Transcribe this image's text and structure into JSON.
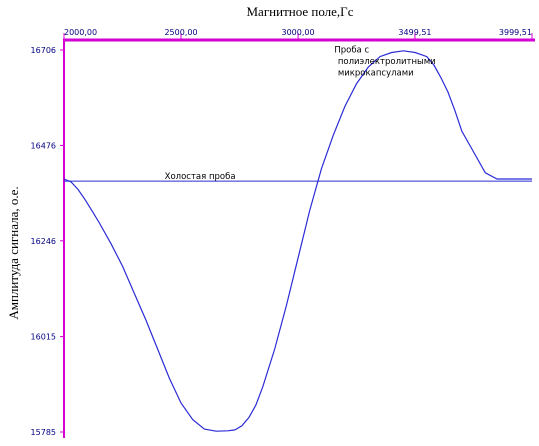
{
  "chart_data": {
    "type": "line",
    "xlabel": "Магнитное поле,Гс",
    "ylabel": "Амплитуда сигнала, о.е.",
    "x_ticks": [
      "2000,00",
      "2500,00",
      "3000,00",
      "3499,51",
      "3999,51"
    ],
    "x_tick_values": [
      2000,
      2500,
      3000,
      3499.51,
      3999.51
    ],
    "y_ticks": [
      "16706",
      "16476",
      "16246",
      "16015",
      "15785"
    ],
    "y_tick_values": [
      16706,
      16476,
      16246,
      16015,
      15785
    ],
    "xlim": [
      2000,
      3999.51
    ],
    "ylim": [
      15785,
      16706
    ],
    "grid": false,
    "colors": {
      "axis": "#d400d4",
      "tick_label": "#000080",
      "series": "#2b2bd6",
      "text": "#000000"
    },
    "annotations": [
      {
        "text": "Проба с",
        "x": 3155,
        "y": 16700
      },
      {
        "text": "полиэлектролитными",
        "x": 3170,
        "y": 16672
      },
      {
        "text": "микрокапсулами",
        "x": 3170,
        "y": 16645
      },
      {
        "text": "Холостая проба",
        "x": 2430,
        "y": 16395
      }
    ],
    "series": [
      {
        "x": [
          2000,
          2030,
          2060,
          2090,
          2120,
          2150,
          2200,
          2250,
          2300,
          2350,
          2400,
          2450,
          2500,
          2550,
          2600,
          2650,
          2700,
          2730,
          2760,
          2790,
          2820,
          2850,
          2900,
          2950,
          3000,
          3050,
          3100,
          3150,
          3200,
          3250,
          3300,
          3350,
          3400,
          3450,
          3500,
          3550,
          3580,
          3610,
          3640,
          3670,
          3700,
          3750,
          3800,
          3850,
          3900,
          3950,
          3999.51
        ],
        "y": [
          16395,
          16388,
          16370,
          16345,
          16318,
          16290,
          16240,
          16185,
          16120,
          16055,
          15985,
          15915,
          15855,
          15815,
          15792,
          15787,
          15788,
          15790,
          15800,
          15820,
          15850,
          15895,
          15985,
          16090,
          16205,
          16320,
          16420,
          16500,
          16570,
          16625,
          16665,
          16690,
          16700,
          16704,
          16700,
          16690,
          16670,
          16640,
          16605,
          16560,
          16510,
          16460,
          16410,
          16395,
          16395,
          16395,
          16395
        ]
      },
      {
        "x": [
          2000,
          3999.51
        ],
        "y": [
          16390,
          16390
        ]
      }
    ]
  }
}
